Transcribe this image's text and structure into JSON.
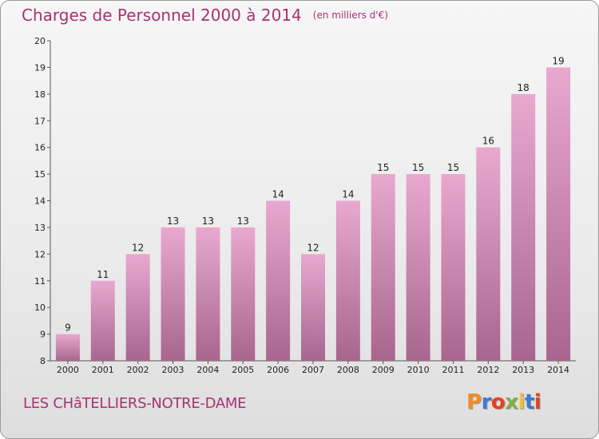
{
  "header": {
    "title": "Charges de Personnel 2000 à 2014",
    "unit": "(en milliers d'€)"
  },
  "footer": {
    "commune": "LES CHâTELLIERS-NOTRE-DAME",
    "logo_text": "Proxiti",
    "logo_colors": [
      "#f28c28",
      "#3a7bd5",
      "#e8401c",
      "#7cb342",
      "#f2c12e",
      "#3a7bd5",
      "#e8401c"
    ]
  },
  "chart_data": {
    "type": "bar",
    "title": "Charges de Personnel 2000 à 2014",
    "subtitle": "(en milliers d'€)",
    "xlabel": "",
    "ylabel": "",
    "categories": [
      "2000",
      "2001",
      "2002",
      "2003",
      "2004",
      "2005",
      "2006",
      "2007",
      "2008",
      "2009",
      "2010",
      "2011",
      "2012",
      "2013",
      "2014"
    ],
    "values": [
      9,
      11,
      12,
      13,
      13,
      13,
      14,
      12,
      14,
      15,
      15,
      15,
      16,
      18,
      19
    ],
    "ylim": [
      8,
      20
    ],
    "yticks": [
      8,
      9,
      10,
      11,
      12,
      13,
      14,
      15,
      16,
      17,
      18,
      19,
      20
    ],
    "grid": false,
    "legend": "none",
    "bar_color_top": "#e8a8cf",
    "bar_color_bottom": "#a8668e"
  }
}
